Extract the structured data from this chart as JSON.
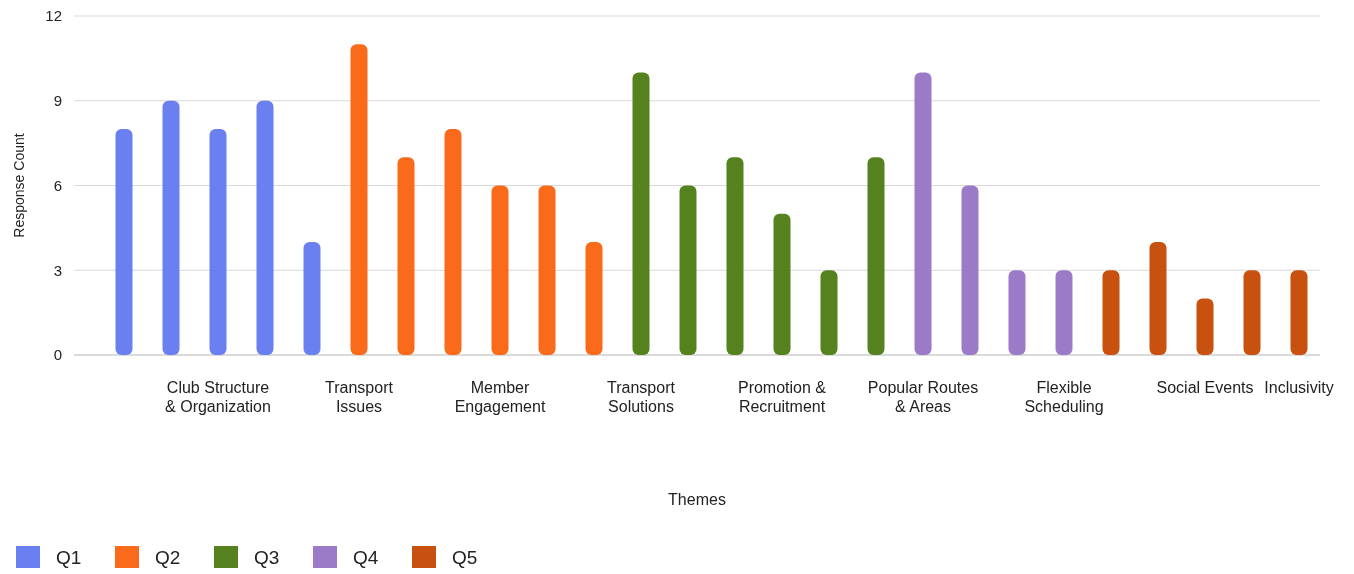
{
  "chart_data": {
    "type": "bar",
    "xlabel": "Themes",
    "ylabel": "Response Count",
    "categories": [
      null,
      null,
      "Club Structure & Organization",
      null,
      null,
      "Transport Issues",
      null,
      null,
      "Member Engagement",
      null,
      null,
      "Transport Solutions",
      null,
      null,
      "Promotion & Recruitment",
      null,
      null,
      "Popular Routes & Areas",
      null,
      null,
      "Flexible Scheduling",
      null,
      null,
      "Social Events",
      null,
      "Inclusivity"
    ],
    "series": [
      {
        "name": "Q1",
        "color": "#6a7ff0",
        "values": [
          8,
          9,
          8,
          9,
          4,
          null,
          null,
          null,
          null,
          null,
          null,
          null,
          null,
          null,
          null,
          null,
          null,
          null,
          null,
          null,
          null,
          null,
          null,
          null,
          null,
          null
        ]
      },
      {
        "name": "Q2",
        "color": "#f96a1b",
        "values": [
          null,
          null,
          null,
          null,
          null,
          11,
          7,
          8,
          6,
          6,
          4,
          null,
          null,
          null,
          null,
          null,
          null,
          null,
          null,
          null,
          null,
          null,
          null,
          null,
          null,
          null
        ]
      },
      {
        "name": "Q3",
        "color": "#55821f",
        "values": [
          null,
          null,
          null,
          null,
          null,
          null,
          null,
          null,
          null,
          null,
          null,
          10,
          6,
          7,
          5,
          3,
          7,
          null,
          null,
          null,
          null,
          null,
          null,
          null,
          null,
          null
        ]
      },
      {
        "name": "Q4",
        "color": "#9b7ac7",
        "values": [
          null,
          null,
          null,
          null,
          null,
          null,
          null,
          null,
          null,
          null,
          null,
          null,
          null,
          null,
          null,
          null,
          null,
          10,
          6,
          3,
          3,
          null,
          null,
          null,
          null,
          null
        ]
      },
      {
        "name": "Q5",
        "color": "#c8510f",
        "values": [
          null,
          null,
          null,
          null,
          null,
          null,
          null,
          null,
          null,
          null,
          null,
          null,
          null,
          null,
          null,
          null,
          null,
          null,
          null,
          null,
          null,
          3,
          4,
          2,
          3,
          3
        ]
      }
    ],
    "ylim": [
      0,
      12
    ],
    "yticks": [
      0,
      3,
      6,
      9,
      12
    ],
    "grid": "y",
    "legend": "bottom left"
  }
}
